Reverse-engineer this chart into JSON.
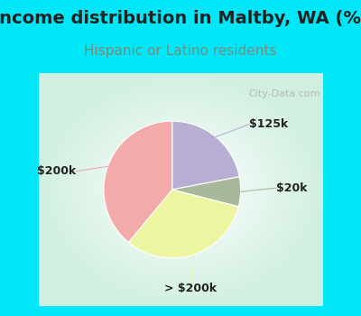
{
  "title": "Income distribution in Maltby, WA (%)",
  "subtitle": "Hispanic or Latino residents",
  "slices": [
    {
      "label": "$125k",
      "value": 22,
      "color": "#b8aed4"
    },
    {
      "label": "$20k",
      "value": 7,
      "color": "#a8b89a"
    },
    {
      "label": "> $200k",
      "value": 32,
      "color": "#eef5a0"
    },
    {
      "label": "$200k",
      "value": 39,
      "color": "#f2aaaa"
    }
  ],
  "startangle": 90,
  "outer_bg": "#00e8f8",
  "watermark": "City-Data.com",
  "title_fontsize": 14,
  "subtitle_fontsize": 11,
  "label_fontsize": 9,
  "title_color": "#222222",
  "subtitle_color": "#7a8a7a"
}
